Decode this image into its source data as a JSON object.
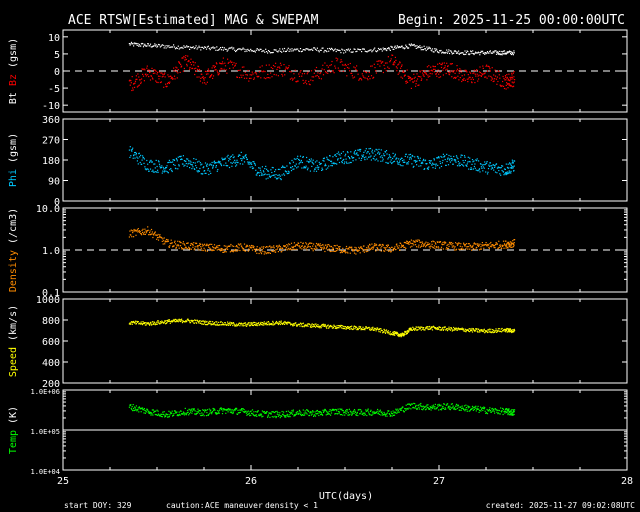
{
  "header": {
    "title": "ACE RTSW[Estimated] MAG & SWEPAM",
    "begin": "Begin: 2025-11-25 00:00:00UTC"
  },
  "footer": {
    "start_doy": "start DOY: 329",
    "caution": "caution:",
    "maneuver": "ACE maneuver",
    "density_note": "density < 1",
    "created": "created: 2025-11-27 09:02:08UTC"
  },
  "colors": {
    "bt": "#ffffff",
    "bz": "#ff0000",
    "phi": "#00c8ff",
    "density": "#ff8c00",
    "speed": "#ffff00",
    "temp": "#00ff00",
    "maneuver": "#ffa500",
    "density_note": "#ff7f00"
  },
  "chart_data": {
    "type": "scatter",
    "x_axis": {
      "label": "UTC(days)",
      "range": [
        25,
        28
      ],
      "ticks": [
        25,
        26,
        27,
        28
      ],
      "tick_labels": [
        "25",
        "26",
        "27",
        "28"
      ]
    },
    "data_end_day": 27.4,
    "panels": [
      {
        "id": "mag",
        "ylabel_parts": [
          "Bt",
          "Bz",
          "(gsm)"
        ],
        "ylabel_colors": [
          "#ffffff",
          "#ff0000",
          "#ffffff"
        ],
        "scale": "linear",
        "ylim": [
          -12,
          12
        ],
        "ticks": [
          10,
          5,
          0,
          -5,
          -10
        ],
        "tick_labels": [
          "10",
          "5",
          "0",
          "-5",
          "-10"
        ],
        "reference_line": 0,
        "series": [
          {
            "name": "Bt",
            "color": "#ffffff",
            "x": [
              25.35,
              25.5,
              25.7,
              25.9,
              26.1,
              26.3,
              26.5,
              26.7,
              26.85,
              27.0,
              27.15,
              27.3,
              27.4
            ],
            "y": [
              8,
              7.5,
              7,
              6.5,
              6,
              6.5,
              6,
              6.5,
              7.5,
              6,
              5.5,
              5.5,
              5.5
            ]
          },
          {
            "name": "Bz",
            "color": "#ff0000",
            "x": [
              25.35,
              25.45,
              25.55,
              25.65,
              25.75,
              25.85,
              26.0,
              26.15,
              26.3,
              26.45,
              26.6,
              26.75,
              26.85,
              26.95,
              27.05,
              27.15,
              27.25,
              27.35,
              27.4
            ],
            "y": [
              -4,
              0,
              -3,
              3,
              -2,
              2,
              -1,
              1,
              -2,
              2,
              -1,
              3,
              -3,
              0,
              1,
              -2,
              0,
              -3,
              -2
            ]
          }
        ]
      },
      {
        "id": "phi",
        "ylabel_parts": [
          "Phi",
          "(gsm)"
        ],
        "ylabel_colors": [
          "#00c8ff",
          "#ffffff"
        ],
        "scale": "linear",
        "ylim": [
          0,
          360
        ],
        "ticks": [
          360,
          270,
          180,
          90,
          0
        ],
        "tick_labels": [
          "360",
          "270",
          "180",
          "90",
          "0"
        ],
        "series": [
          {
            "name": "Phi",
            "color": "#00c8ff",
            "x": [
              25.35,
              25.45,
              25.55,
              25.65,
              25.75,
              25.85,
              25.95,
              26.05,
              26.15,
              26.25,
              26.35,
              26.45,
              26.55,
              26.65,
              26.75,
              26.85,
              26.95,
              27.05,
              27.15,
              27.25,
              27.35,
              27.4
            ],
            "y": [
              220,
              160,
              150,
              180,
              140,
              170,
              190,
              130,
              120,
              180,
              150,
              190,
              200,
              210,
              190,
              180,
              160,
              190,
              170,
              150,
              140,
              160
            ]
          }
        ]
      },
      {
        "id": "density",
        "ylabel_parts": [
          "Density",
          "(/cm3)"
        ],
        "ylabel_colors": [
          "#ff8c00",
          "#ffffff"
        ],
        "scale": "log",
        "ylim": [
          0.1,
          10
        ],
        "ticks": [
          10,
          1,
          0.1
        ],
        "tick_labels": [
          "10.0",
          "1.0",
          "0.1"
        ],
        "reference_line": 1,
        "series": [
          {
            "name": "Density",
            "color": "#ff8c00",
            "x": [
              25.35,
              25.45,
              25.55,
              25.65,
              25.75,
              25.85,
              25.95,
              26.05,
              26.15,
              26.25,
              26.35,
              26.45,
              26.55,
              26.65,
              26.75,
              26.85,
              26.95,
              27.05,
              27.15,
              27.25,
              27.35,
              27.4
            ],
            "y": [
              2.5,
              3,
              1.5,
              1.3,
              1.2,
              1.1,
              1.2,
              1.0,
              1.1,
              1.3,
              1.2,
              1.1,
              1.0,
              1.2,
              1.1,
              1.5,
              1.4,
              1.3,
              1.2,
              1.3,
              1.4,
              1.5
            ]
          }
        ]
      },
      {
        "id": "speed",
        "ylabel_parts": [
          "Speed",
          "(km/s)"
        ],
        "ylabel_colors": [
          "#ffff00",
          "#ffffff"
        ],
        "scale": "linear",
        "ylim": [
          200,
          1000
        ],
        "ticks": [
          1000,
          800,
          600,
          400,
          200
        ],
        "tick_labels": [
          "1000",
          "800",
          "600",
          "400",
          "200"
        ],
        "series": [
          {
            "name": "Speed",
            "color": "#ffff00",
            "x": [
              25.35,
              25.45,
              25.55,
              25.65,
              25.75,
              25.85,
              25.95,
              26.05,
              26.15,
              26.25,
              26.35,
              26.45,
              26.55,
              26.65,
              26.75,
              26.8,
              26.85,
              26.95,
              27.05,
              27.15,
              27.25,
              27.35,
              27.4
            ],
            "y": [
              780,
              770,
              790,
              800,
              780,
              770,
              760,
              770,
              780,
              760,
              750,
              740,
              730,
              720,
              680,
              660,
              720,
              730,
              720,
              710,
              700,
              710,
              700
            ]
          }
        ]
      },
      {
        "id": "temp",
        "ylabel_parts": [
          "Temp",
          "(K)"
        ],
        "ylabel_colors": [
          "#00ff00",
          "#ffffff"
        ],
        "scale": "log",
        "ylim": [
          10000,
          1000000
        ],
        "ticks": [
          1000000,
          100000,
          10000
        ],
        "tick_labels": [
          "1.0E+06",
          "1.0E+05",
          "1.0E+04"
        ],
        "reference_line": 100000,
        "series": [
          {
            "name": "Temp",
            "color": "#00ff00",
            "x": [
              25.35,
              25.45,
              25.55,
              25.65,
              25.75,
              25.85,
              25.95,
              26.05,
              26.15,
              26.25,
              26.35,
              26.45,
              26.55,
              26.65,
              26.75,
              26.85,
              26.95,
              27.05,
              27.15,
              27.25,
              27.35,
              27.4
            ],
            "y": [
              400000,
              300000,
              250000,
              300000,
              280000,
              320000,
              300000,
              260000,
              250000,
              280000,
              270000,
              300000,
              280000,
              290000,
              270000,
              420000,
              380000,
              400000,
              360000,
              320000,
              300000,
              280000
            ]
          }
        ]
      }
    ]
  }
}
